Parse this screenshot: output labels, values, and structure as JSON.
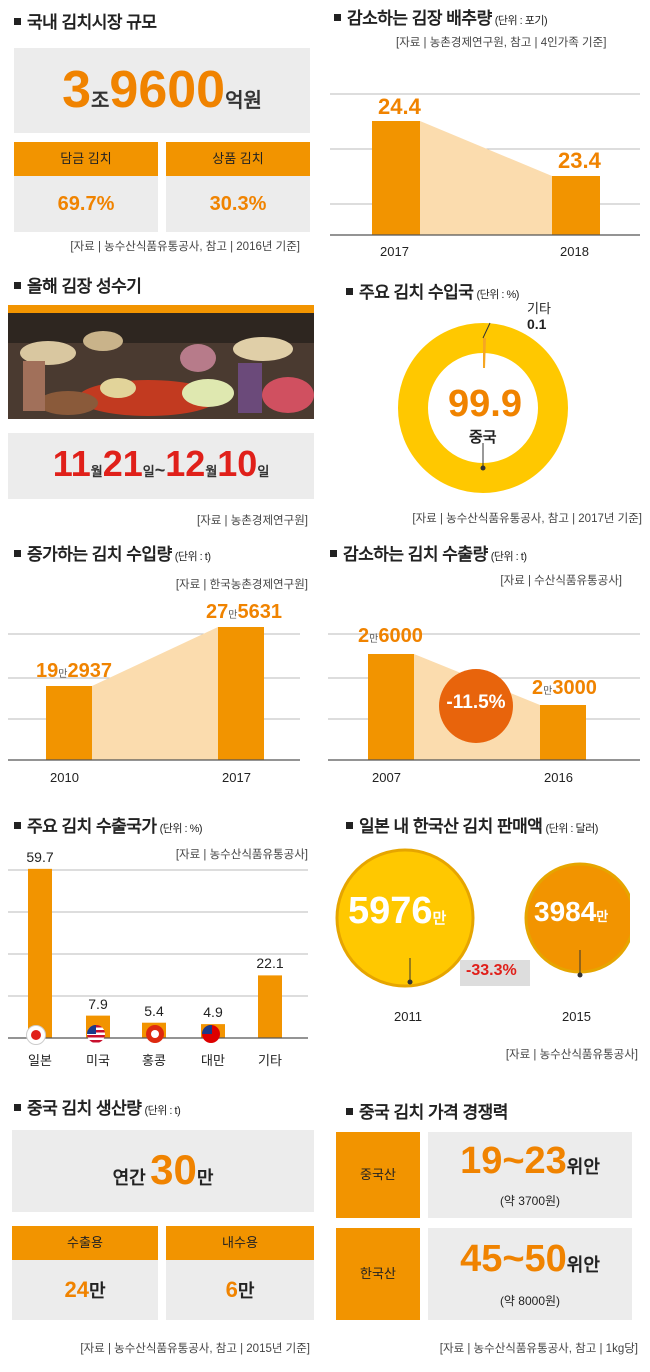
{
  "s1": {
    "title": "국내 김치시장 규모",
    "num_a": "3",
    "unit_a": "조",
    "num_b": "9600",
    "unit_b": "억원",
    "left_hdr": "담금 김치",
    "left_val": "69.7%",
    "right_hdr": "상품 김치",
    "right_val": "30.3%",
    "source": "[자료 | 농수산식품유통공사, 참고 | 2016년 기준]"
  },
  "s2": {
    "title": "감소하는 김장 배추량",
    "unit": "(단위 : 포기)",
    "source": "[자료 | 농촌경제연구원, 참고 | 4인가족 기준]",
    "labels": [
      "24.4",
      "23.4"
    ],
    "years": [
      "2017",
      "2018"
    ]
  },
  "s3": {
    "title": "올해 김장 성수기",
    "d1n": "11",
    "d1u": "월",
    "d2n": "21",
    "d2u": "일",
    "tilde": "~",
    "d3n": "12",
    "d3u": "월",
    "d4n": "10",
    "d4u": "일",
    "source": "[자료 | 농촌경제연구원]"
  },
  "s4": {
    "title": "주요 김치 수입국",
    "unit": "(단위 : %)",
    "other_label": "기타",
    "other_val": "0.1",
    "main_val": "99.9",
    "main_label": "중국",
    "source": "[자료 | 농수산식품유통공사, 참고 | 2017년 기준]"
  },
  "s5": {
    "title": "증가하는 김치 수입량",
    "unit": "(단위 : t)",
    "source": "[자료 | 한국농촌경제연구원]",
    "l1a": "19",
    "l1u": "만",
    "l1b": "2937",
    "l2a": "27",
    "l2u": "만",
    "l2b": "5631",
    "years": [
      "2010",
      "2017"
    ]
  },
  "s6": {
    "title": "감소하는 김치 수출량",
    "unit": "(단위 : t)",
    "source": "[자료 | 수산식품유통공사]",
    "l1a": "2",
    "l1u": "만",
    "l1b": "6000",
    "l2a": "2",
    "l2u": "만",
    "l2b": "3000",
    "change": "-11.5%",
    "years": [
      "2007",
      "2016"
    ]
  },
  "s7": {
    "title": "주요 김치 수출국가",
    "unit": "(단위 : %)",
    "source": "[자료 | 농수산식품유통공사]"
  },
  "s8": {
    "title": "일본 내 한국산 김치 판매액",
    "unit": "(단위 : 달러)",
    "v1": "5976",
    "u1": "만",
    "v2": "3984",
    "u2": "만",
    "change": "-33.3%",
    "years": [
      "2011",
      "2015"
    ],
    "source": "[자료 | 농수산식품유통공사]"
  },
  "s9": {
    "title": "중국 김치 생산량",
    "unit": "(단위 : t)",
    "pre": "연간",
    "num": "30",
    "suf": "만",
    "left_hdr": "수출용",
    "left_num": "24",
    "left_u": "만",
    "right_hdr": "내수용",
    "right_num": "6",
    "right_u": "만",
    "source": "[자료 | 농수산식품유통공사, 참고 | 2015년 기준]"
  },
  "s10": {
    "title": "중국 김치 가격 경쟁력",
    "row1_lbl": "중국산",
    "row1_num": "19~23",
    "row1_u": "위안",
    "row1_sub": "(약 3700원)",
    "row2_lbl": "한국산",
    "row2_num": "45~50",
    "row2_u": "위안",
    "row2_sub": "(약 8000원)",
    "source": "[자료 | 농수산식품유통공사, 참고 | 1kg당]"
  },
  "chart_data": [
    {
      "type": "bar",
      "title": "감소하는 김장 배추량",
      "categories": [
        "2017",
        "2018"
      ],
      "values": [
        24.4,
        23.4
      ],
      "ylabel": "포기"
    },
    {
      "type": "pie",
      "title": "주요 김치 수입국",
      "categories": [
        "중국",
        "기타"
      ],
      "values": [
        99.9,
        0.1
      ]
    },
    {
      "type": "bar",
      "title": "증가하는 김치 수입량",
      "categories": [
        "2010",
        "2017"
      ],
      "values": [
        192937,
        275631
      ],
      "ylabel": "t"
    },
    {
      "type": "bar",
      "title": "감소하는 김치 수출량",
      "categories": [
        "2007",
        "2016"
      ],
      "values": [
        26000,
        23000
      ],
      "ylabel": "t"
    },
    {
      "type": "bar",
      "title": "주요 김치 수출국가",
      "categories": [
        "일본",
        "미국",
        "홍콩",
        "대만",
        "기타"
      ],
      "values": [
        59.7,
        7.9,
        5.4,
        4.9,
        22.1
      ],
      "ylabel": "%"
    },
    {
      "type": "bar",
      "title": "일본 내 한국산 김치 판매액",
      "categories": [
        "2011",
        "2015"
      ],
      "values": [
        59760000,
        39840000
      ],
      "ylabel": "달러"
    }
  ],
  "colors": {
    "orange": "#f29400",
    "orange_text": "#f08300",
    "yellow": "#ffc800",
    "red": "#e0201a",
    "bg_grey": "#ececec"
  }
}
